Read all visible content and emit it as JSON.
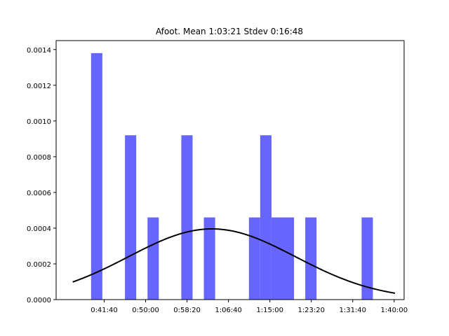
{
  "chart_data": {
    "type": "bar",
    "title": "Afoot. Mean 1:03:21 Stdev 0:16:48",
    "xlabel": "",
    "ylabel": "",
    "x_unit": "seconds",
    "xlim": [
      1920,
      6120
    ],
    "ylim": [
      0,
      0.00145
    ],
    "bar_color": "#6666ff",
    "curve_color": "#000000",
    "x_ticks": [
      {
        "value": 2500,
        "label": "0:41:40"
      },
      {
        "value": 3000,
        "label": "0:50:00"
      },
      {
        "value": 3500,
        "label": "0:58:20"
      },
      {
        "value": 4000,
        "label": "1:06:40"
      },
      {
        "value": 4500,
        "label": "1:15:00"
      },
      {
        "value": 5000,
        "label": "1:23:20"
      },
      {
        "value": 5500,
        "label": "1:31:40"
      },
      {
        "value": 6000,
        "label": "1:40:00"
      }
    ],
    "y_ticks": [
      {
        "value": 0.0,
        "label": "0.0000"
      },
      {
        "value": 0.0002,
        "label": "0.0002"
      },
      {
        "value": 0.0004,
        "label": "0.0004"
      },
      {
        "value": 0.0006,
        "label": "0.0006"
      },
      {
        "value": 0.0008,
        "label": "0.0008"
      },
      {
        "value": 0.001,
        "label": "0.0010"
      },
      {
        "value": 0.0012,
        "label": "0.0012"
      },
      {
        "value": 0.0014,
        "label": "0.0014"
      }
    ],
    "bin_width": 136,
    "bars": [
      {
        "x_start": 2342,
        "value": 0.00138
      },
      {
        "x_start": 2751,
        "value": 0.00092
      },
      {
        "x_start": 3023,
        "value": 0.00046
      },
      {
        "x_start": 3431,
        "value": 0.00092
      },
      {
        "x_start": 3703,
        "value": 0.00046
      },
      {
        "x_start": 4247,
        "value": 0.00046
      },
      {
        "x_start": 4383,
        "value": 0.00092
      },
      {
        "x_start": 4519,
        "value": 0.00046
      },
      {
        "x_start": 4655,
        "value": 0.00046
      },
      {
        "x_start": 4927,
        "value": 0.00046
      },
      {
        "x_start": 5607,
        "value": 0.00046
      }
    ],
    "curve": {
      "type": "normal",
      "mean": 3801,
      "stdev": 1008,
      "x_start": 2120,
      "x_end": 6010
    }
  }
}
